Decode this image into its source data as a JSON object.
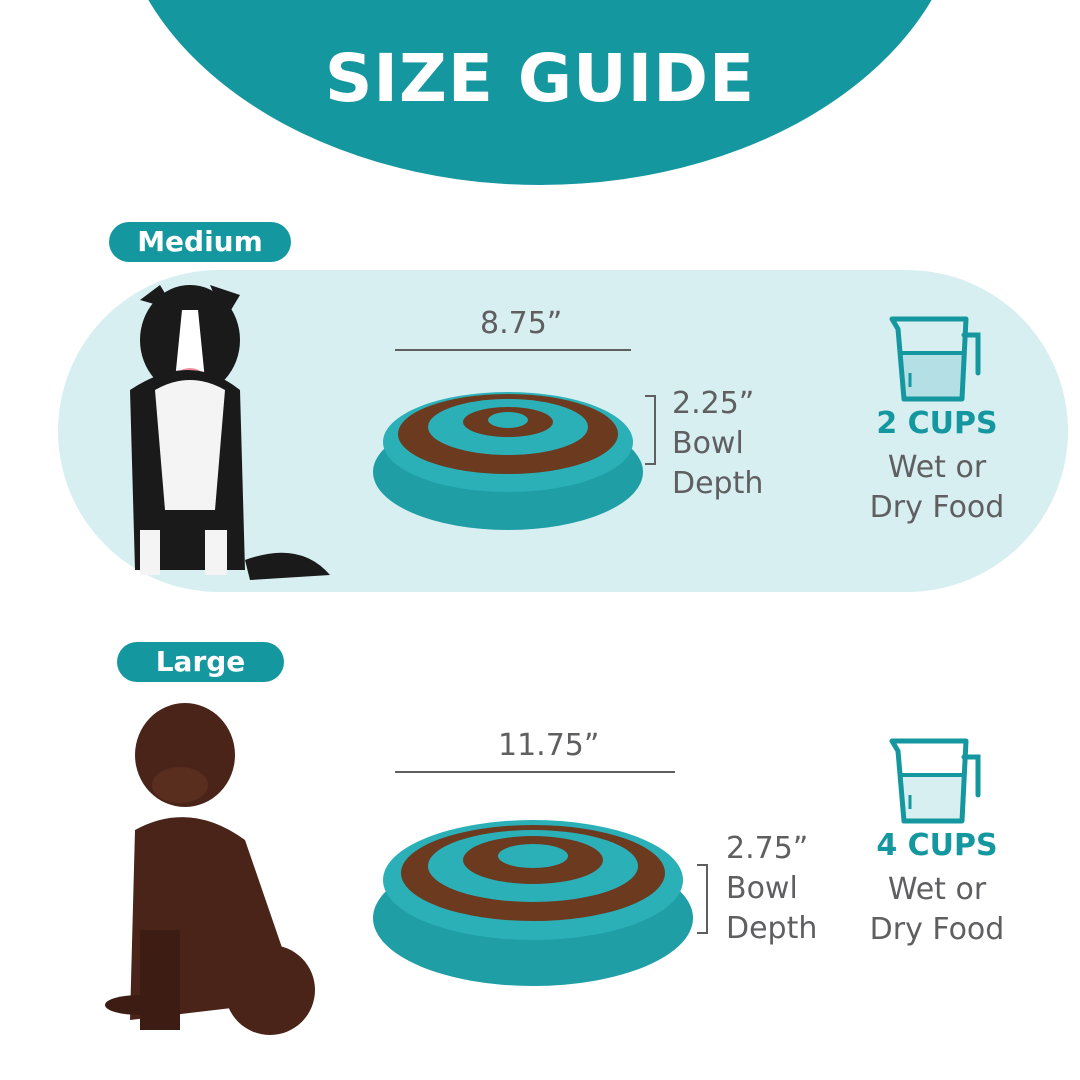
{
  "header": {
    "title": "SIZE GUIDE"
  },
  "colors": {
    "accent": "#15979f",
    "panel": "#d8eff2",
    "text": "#5f5f62"
  },
  "sizes": [
    {
      "label": "Medium",
      "width": "8.75”",
      "depth_value": "2.25”",
      "depth_label_1": "Bowl",
      "depth_label_2": "Depth",
      "capacity": "2 CUPS",
      "food_1": "Wet or",
      "food_2": "Dry Food",
      "dog": "border-collie",
      "icon": "measuring-cup-icon"
    },
    {
      "label": "Large",
      "width": "11.75”",
      "depth_value": "2.75”",
      "depth_label_1": "Bowl",
      "depth_label_2": "Depth",
      "capacity": "4 CUPS",
      "food_1": "Wet or",
      "food_2": "Dry Food",
      "dog": "chocolate-labrador",
      "icon": "measuring-cup-icon"
    }
  ]
}
